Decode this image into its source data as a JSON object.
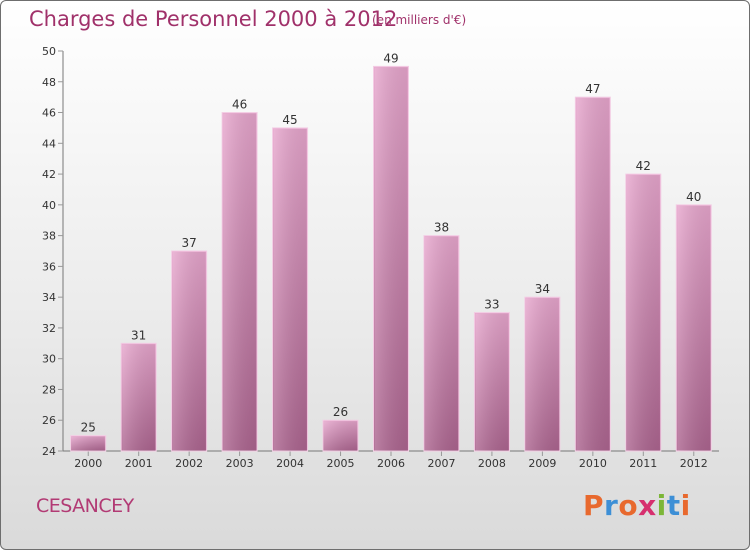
{
  "header": {
    "title": "Charges de Personnel 2000 à 2012",
    "unit_note": "(en milliers d'€)"
  },
  "footer": {
    "town": "CESANCEY",
    "brand": "Proxiti"
  },
  "colors": {
    "title": "#a0316a",
    "bar_top": "#e7a6cd",
    "bar_bottom": "#ad6590",
    "bar_edge": "#f3cde4",
    "axis": "#777777",
    "grid_tick": "#999999",
    "logo_letters": [
      "#e8692e",
      "#3d8fd6",
      "#e8692e",
      "#d62f6e",
      "#7cb637",
      "#3d8fd6",
      "#e8692e"
    ]
  },
  "chart_data": {
    "type": "bar",
    "categories": [
      "2000",
      "2001",
      "2002",
      "2003",
      "2004",
      "2005",
      "2006",
      "2007",
      "2008",
      "2009",
      "2010",
      "2011",
      "2012"
    ],
    "values": [
      25,
      31,
      37,
      46,
      45,
      26,
      49,
      38,
      33,
      34,
      47,
      42,
      40
    ],
    "title": "Charges de Personnel 2000 à 2012",
    "subtitle": "(en milliers d'€)",
    "xlabel": "",
    "ylabel": "",
    "ylim": [
      24,
      50
    ],
    "yticks": [
      24,
      26,
      28,
      30,
      32,
      34,
      36,
      38,
      40,
      42,
      44,
      46,
      48,
      50
    ],
    "grid": false,
    "data_labels": true
  }
}
